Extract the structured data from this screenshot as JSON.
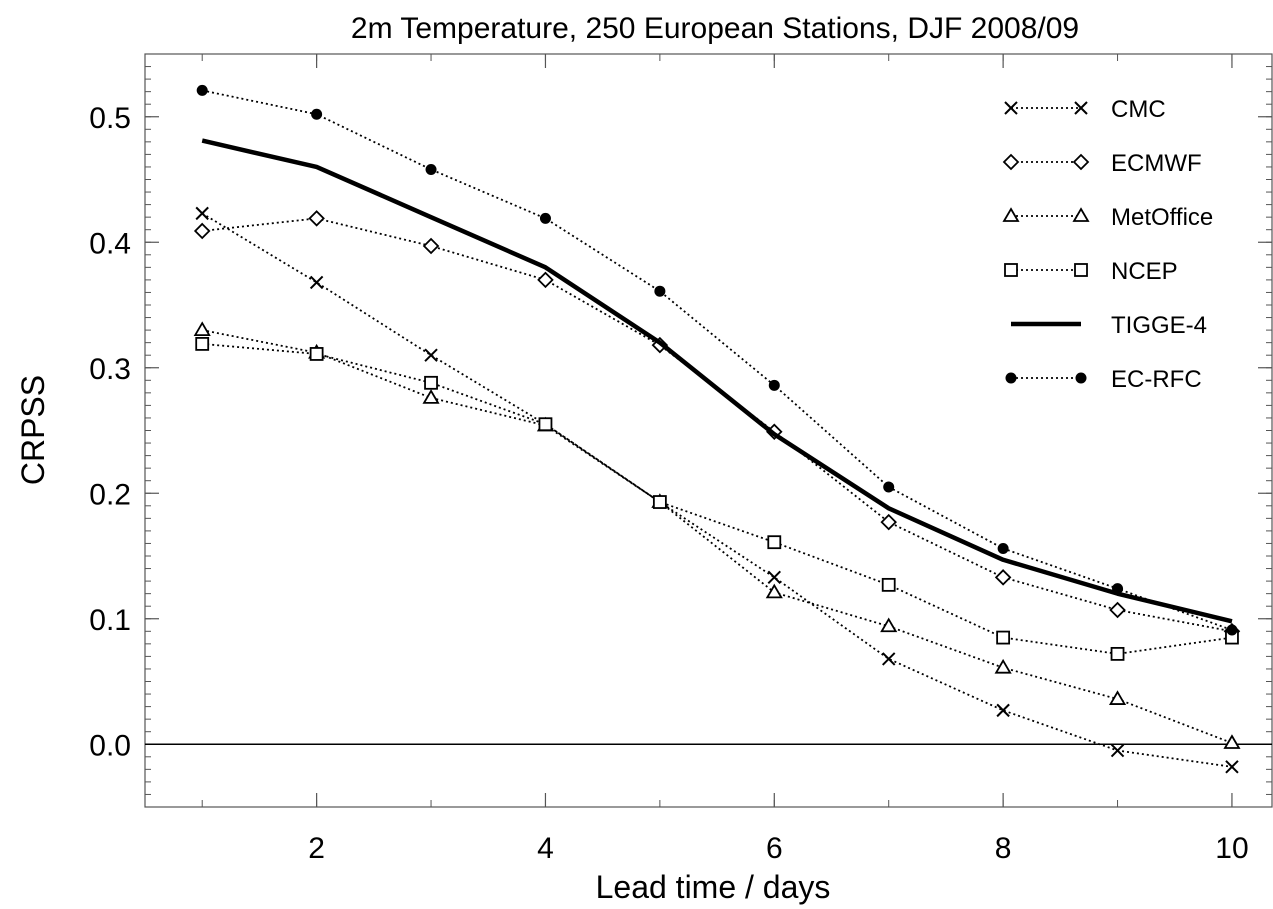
{
  "chart_data": {
    "type": "line",
    "title": "2m Temperature, 250 European Stations, DJF 2008/09",
    "xlabel": "Lead time / days",
    "ylabel": "CRPSS",
    "xlim": [
      0.5,
      10.35
    ],
    "ylim": [
      -0.05,
      0.55
    ],
    "xticks": [
      2,
      4,
      6,
      8,
      10
    ],
    "xtick_labels": [
      "2",
      "4",
      "6",
      "8",
      "10"
    ],
    "yticks": [
      0.0,
      0.1,
      0.2,
      0.3,
      0.4,
      0.5
    ],
    "ytick_labels": [
      "0.0",
      "0.1",
      "0.2",
      "0.3",
      "0.4",
      "0.5"
    ],
    "reference_line": 0,
    "grid": false,
    "legend_position": "top-right",
    "x": [
      1,
      2,
      3,
      4,
      5,
      6,
      7,
      8,
      9,
      10
    ],
    "series": [
      {
        "name": "CMC",
        "marker": "x",
        "line": "dotted",
        "values": [
          0.423,
          0.368,
          0.31,
          0.255,
          0.193,
          0.133,
          0.068,
          0.027,
          -0.005,
          -0.018
        ]
      },
      {
        "name": "ECMWF",
        "marker": "diamond",
        "line": "dotted",
        "values": [
          0.409,
          0.419,
          0.397,
          0.37,
          0.318,
          0.249,
          0.177,
          0.133,
          0.107,
          0.09
        ]
      },
      {
        "name": "MetOffice",
        "marker": "triangle",
        "line": "dotted",
        "values": [
          0.33,
          0.312,
          0.276,
          0.254,
          0.193,
          0.121,
          0.094,
          0.061,
          0.036,
          0.001
        ]
      },
      {
        "name": "NCEP",
        "marker": "square",
        "line": "dotted",
        "values": [
          0.319,
          0.311,
          0.288,
          0.255,
          0.193,
          0.161,
          0.127,
          0.085,
          0.072,
          0.085
        ]
      },
      {
        "name": "TIGGE-4",
        "marker": "none",
        "line": "solid",
        "values": [
          0.481,
          0.46,
          0.42,
          0.38,
          0.32,
          0.247,
          0.188,
          0.147,
          0.12,
          0.098
        ]
      },
      {
        "name": "EC-RFC",
        "marker": "dot",
        "line": "dotted",
        "values": [
          0.521,
          0.502,
          0.458,
          0.419,
          0.361,
          0.286,
          0.205,
          0.156,
          0.124,
          0.091
        ]
      }
    ]
  }
}
